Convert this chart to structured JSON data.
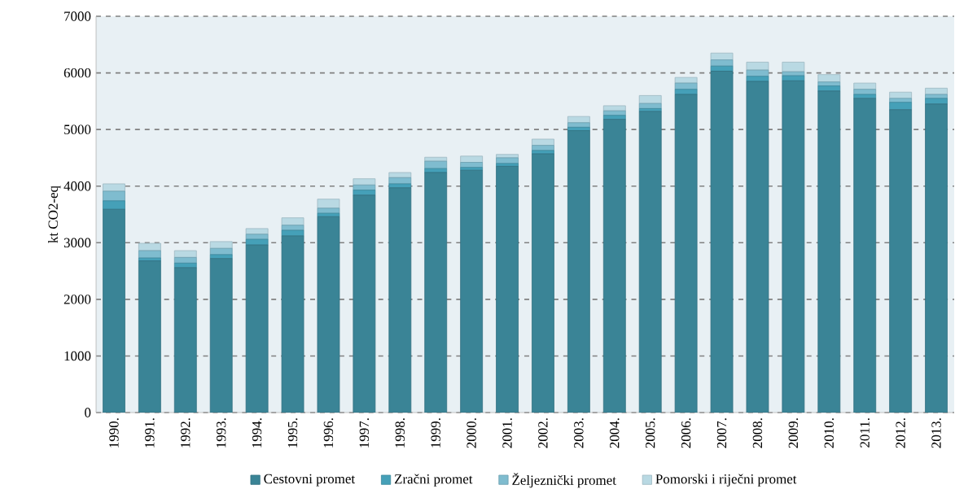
{
  "chart_data": {
    "type": "bar",
    "stacked": true,
    "ylabel": "kt CO2-eq",
    "categories": [
      "1990.",
      "1991.",
      "1992.",
      "1993.",
      "1994.",
      "1995.",
      "1996.",
      "1997.",
      "1998.",
      "1999.",
      "2000.",
      "2001.",
      "2002.",
      "2003.",
      "2004.",
      "2005.",
      "2006.",
      "2007.",
      "2008.",
      "2009.",
      "2010.",
      "2011.",
      "2012.",
      "2013."
    ],
    "series": [
      {
        "name": "Cestovni promet",
        "color": "#3a8496",
        "values": [
          3590,
          2680,
          2560,
          2720,
          2960,
          3120,
          3460,
          3840,
          3970,
          4240,
          4280,
          4350,
          4570,
          4980,
          5180,
          5320,
          5620,
          6030,
          5850,
          5860,
          5680,
          5550,
          5350,
          5450
        ]
      },
      {
        "name": "Zračni promet",
        "color": "#45a0b8",
        "values": [
          150,
          50,
          80,
          70,
          100,
          100,
          60,
          90,
          70,
          70,
          50,
          50,
          60,
          60,
          70,
          50,
          90,
          90,
          90,
          90,
          90,
          70,
          130,
          100
        ]
      },
      {
        "name": "Željeznički promet",
        "color": "#7fbccf",
        "values": [
          170,
          130,
          100,
          110,
          90,
          90,
          90,
          90,
          110,
          130,
          90,
          100,
          90,
          80,
          80,
          90,
          110,
          110,
          110,
          70,
          70,
          90,
          70,
          70
        ]
      },
      {
        "name": "Pomorski i riječni promet",
        "color": "#b9d9e3",
        "values": [
          130,
          130,
          120,
          120,
          100,
          130,
          160,
          110,
          90,
          70,
          110,
          60,
          110,
          110,
          90,
          140,
          100,
          120,
          140,
          170,
          130,
          110,
          110,
          110
        ]
      }
    ],
    "ylim": [
      0,
      7000
    ],
    "yticks": [
      0,
      1000,
      2000,
      3000,
      4000,
      5000,
      6000,
      7000
    ],
    "grid": "y",
    "legend": "bottom"
  }
}
